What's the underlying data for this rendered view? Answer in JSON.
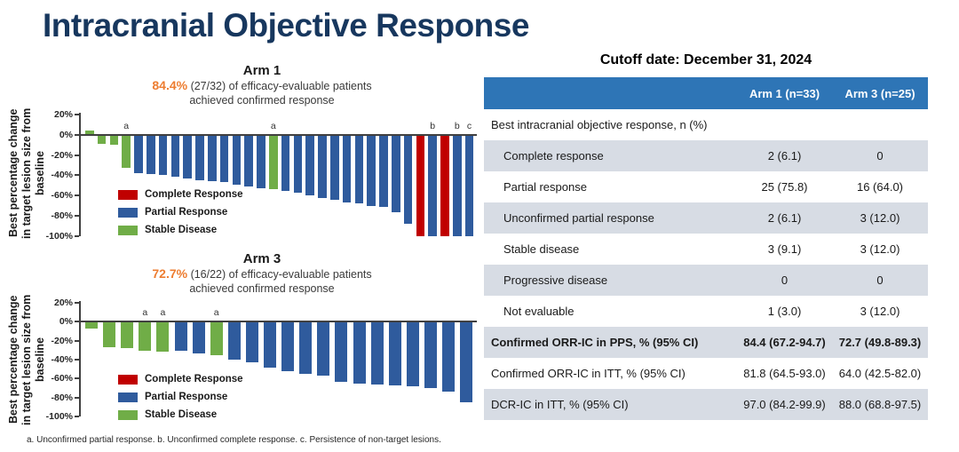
{
  "page_title": "Intracranial Objective Response",
  "cutoff": "Cutoff date: December 31, 2024",
  "footnote": "a. Unconfirmed partial response. b. Unconfirmed complete response. c. Persistence of non-target lesions.",
  "colors": {
    "title_navy": "#17375E",
    "highlight_orange": "#ED7D31",
    "complete_response_red": "#C00000",
    "partial_response_blue": "#2F5B9D",
    "stable_disease_green": "#70AD47",
    "table_header_blue": "#2E75B6",
    "table_row_gray": "#D7DCE4"
  },
  "chart_data": [
    {
      "type": "bar",
      "title": "Arm 1",
      "highlight_pct": "84.4%",
      "subtitle_rest": "(27/32) of efficacy-evaluable patients",
      "subtitle_line2": "achieved confirmed response",
      "ylabel": "Best percentage change in target lesion size from baseline",
      "ylim": [
        -100,
        20
      ],
      "yticks": [
        {
          "v": 20,
          "label": "20%"
        },
        {
          "v": 0,
          "label": "0%"
        },
        {
          "v": -20,
          "label": "-20%"
        },
        {
          "v": -40,
          "label": "-40%"
        },
        {
          "v": -60,
          "label": "-60%"
        },
        {
          "v": -80,
          "label": "-80%"
        },
        {
          "v": -100,
          "label": "-100%"
        }
      ],
      "legend": [
        {
          "key": "CR",
          "label": "Complete Response",
          "color": "#C00000"
        },
        {
          "key": "PR",
          "label": "Partial Response",
          "color": "#2F5B9D"
        },
        {
          "key": "SD",
          "label": "Stable Disease",
          "color": "#70AD47"
        }
      ],
      "bars": [
        {
          "v": 4,
          "c": "SD"
        },
        {
          "v": -9,
          "c": "SD"
        },
        {
          "v": -10,
          "c": "SD"
        },
        {
          "v": -33,
          "c": "SD",
          "n": "a"
        },
        {
          "v": -38,
          "c": "PR"
        },
        {
          "v": -39,
          "c": "PR"
        },
        {
          "v": -40,
          "c": "PR"
        },
        {
          "v": -41,
          "c": "PR"
        },
        {
          "v": -43,
          "c": "PR"
        },
        {
          "v": -45,
          "c": "PR"
        },
        {
          "v": -46,
          "c": "PR"
        },
        {
          "v": -47,
          "c": "PR"
        },
        {
          "v": -49,
          "c": "PR"
        },
        {
          "v": -51,
          "c": "PR"
        },
        {
          "v": -53,
          "c": "PR"
        },
        {
          "v": -54,
          "c": "SD",
          "n": "a"
        },
        {
          "v": -55,
          "c": "PR"
        },
        {
          "v": -57,
          "c": "PR"
        },
        {
          "v": -60,
          "c": "PR"
        },
        {
          "v": -62,
          "c": "PR"
        },
        {
          "v": -64,
          "c": "PR"
        },
        {
          "v": -67,
          "c": "PR"
        },
        {
          "v": -68,
          "c": "PR"
        },
        {
          "v": -70,
          "c": "PR"
        },
        {
          "v": -71,
          "c": "PR"
        },
        {
          "v": -76,
          "c": "PR"
        },
        {
          "v": -88,
          "c": "PR"
        },
        {
          "v": -100,
          "c": "CR"
        },
        {
          "v": -100,
          "c": "PR",
          "n": "b"
        },
        {
          "v": -100,
          "c": "CR"
        },
        {
          "v": -100,
          "c": "PR",
          "n": "b"
        },
        {
          "v": -100,
          "c": "PR",
          "n": "c"
        }
      ]
    },
    {
      "type": "bar",
      "title": "Arm 3",
      "highlight_pct": "72.7%",
      "subtitle_rest": "(16/22) of efficacy-evaluable patients",
      "subtitle_line2": "achieved confirmed response",
      "ylabel": "Best percentage change in target lesion size from baseline",
      "ylim": [
        -100,
        20
      ],
      "yticks": [
        {
          "v": 20,
          "label": "20%"
        },
        {
          "v": 0,
          "label": "0%"
        },
        {
          "v": -20,
          "label": "-20%"
        },
        {
          "v": -40,
          "label": "-40%"
        },
        {
          "v": -60,
          "label": "-60%"
        },
        {
          "v": -80,
          "label": "-80%"
        },
        {
          "v": -100,
          "label": "-100%"
        }
      ],
      "legend": [
        {
          "key": "CR",
          "label": "Complete Response",
          "color": "#C00000"
        },
        {
          "key": "PR",
          "label": "Partial Response",
          "color": "#2F5B9D"
        },
        {
          "key": "SD",
          "label": "Stable Disease",
          "color": "#70AD47"
        }
      ],
      "bars": [
        {
          "v": -7,
          "c": "SD"
        },
        {
          "v": -27,
          "c": "SD"
        },
        {
          "v": -28,
          "c": "SD"
        },
        {
          "v": -31,
          "c": "SD",
          "n": "a"
        },
        {
          "v": -32,
          "c": "SD",
          "n": "a"
        },
        {
          "v": -31,
          "c": "PR"
        },
        {
          "v": -33,
          "c": "PR"
        },
        {
          "v": -35,
          "c": "SD",
          "n": "a"
        },
        {
          "v": -40,
          "c": "PR"
        },
        {
          "v": -43,
          "c": "PR"
        },
        {
          "v": -48,
          "c": "PR"
        },
        {
          "v": -52,
          "c": "PR"
        },
        {
          "v": -55,
          "c": "PR"
        },
        {
          "v": -57,
          "c": "PR"
        },
        {
          "v": -63,
          "c": "PR"
        },
        {
          "v": -65,
          "c": "PR"
        },
        {
          "v": -66,
          "c": "PR"
        },
        {
          "v": -67,
          "c": "PR"
        },
        {
          "v": -68,
          "c": "PR"
        },
        {
          "v": -70,
          "c": "PR"
        },
        {
          "v": -74,
          "c": "PR"
        },
        {
          "v": -85,
          "c": "PR"
        }
      ]
    }
  ],
  "table": {
    "columns": [
      "",
      "Arm 1 (n=33)",
      "Arm 3 (n=25)"
    ],
    "rows": [
      {
        "label": "Best intracranial objective response, n (%)",
        "arm1": "",
        "arm3": "",
        "indent": false,
        "bold": false
      },
      {
        "label": "Complete response",
        "arm1": "2 (6.1)",
        "arm3": "0",
        "indent": true,
        "bold": false
      },
      {
        "label": "Partial response",
        "arm1": "25 (75.8)",
        "arm3": "16 (64.0)",
        "indent": true,
        "bold": false
      },
      {
        "label": "Unconfirmed partial response",
        "arm1": "2 (6.1)",
        "arm3": "3 (12.0)",
        "indent": true,
        "bold": false
      },
      {
        "label": "Stable disease",
        "arm1": "3 (9.1)",
        "arm3": "3 (12.0)",
        "indent": true,
        "bold": false
      },
      {
        "label": "Progressive disease",
        "arm1": "0",
        "arm3": "0",
        "indent": true,
        "bold": false
      },
      {
        "label": "Not evaluable",
        "arm1": "1 (3.0)",
        "arm3": "3 (12.0)",
        "indent": true,
        "bold": false
      },
      {
        "label": "Confirmed ORR-IC in PPS, % (95% CI)",
        "arm1": "84.4 (67.2-94.7)",
        "arm3": "72.7 (49.8-89.3)",
        "indent": false,
        "bold": true
      },
      {
        "label": "Confirmed ORR-IC in ITT, % (95% CI)",
        "arm1": "81.8 (64.5-93.0)",
        "arm3": "64.0 (42.5-82.0)",
        "indent": false,
        "bold": false
      },
      {
        "label": "DCR-IC in ITT, % (95% CI)",
        "arm1": "97.0 (84.2-99.9)",
        "arm3": "88.0 (68.8-97.5)",
        "indent": false,
        "bold": false
      }
    ]
  }
}
